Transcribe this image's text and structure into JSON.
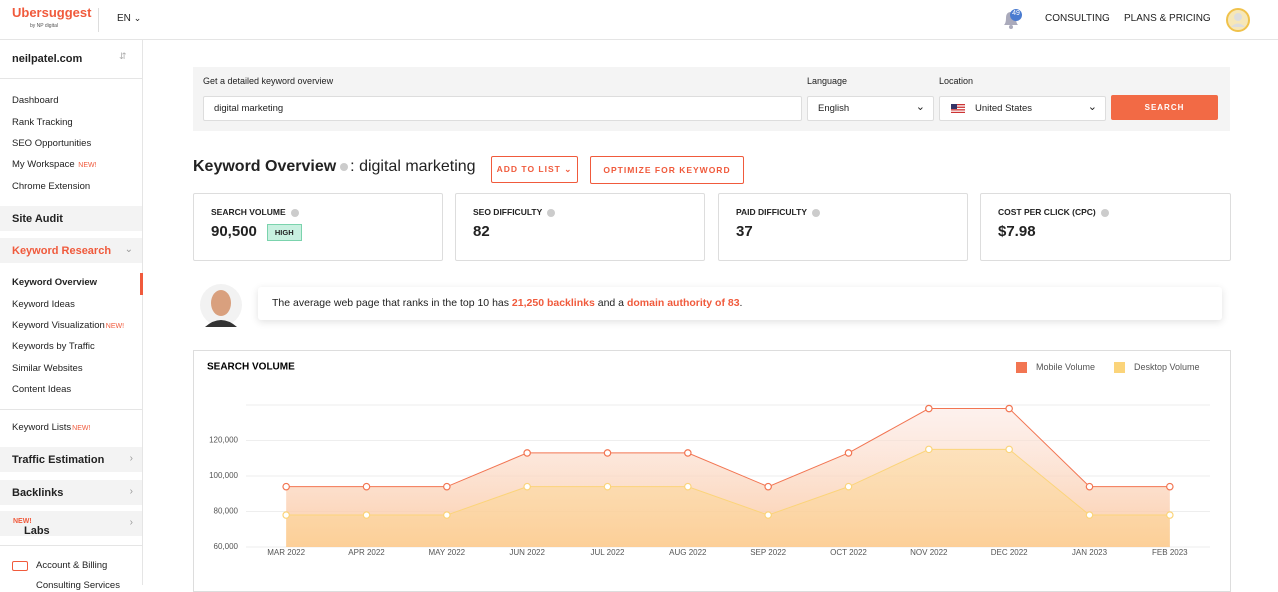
{
  "header": {
    "logo": "Ubersuggest",
    "logo_sub": "by NP digital",
    "language": "EN",
    "notifications": "49",
    "nav": [
      "CONSULTING",
      "PLANS & PRICING"
    ]
  },
  "sidebar": {
    "site": "neilpatel.com",
    "tools": [
      {
        "label": "Dashboard"
      },
      {
        "label": "Rank Tracking"
      },
      {
        "label": "SEO Opportunities"
      },
      {
        "label": "My Workspace",
        "badge": "NEW!"
      },
      {
        "label": "Chrome Extension"
      }
    ],
    "site_audit": "Site Audit",
    "keyword_research": "Keyword Research",
    "keyword_items": [
      {
        "label": "Keyword Overview"
      },
      {
        "label": "Keyword Ideas"
      },
      {
        "label": "Keyword Visualization",
        "badge": "NEW!"
      },
      {
        "label": "Keywords by Traffic"
      },
      {
        "label": "Similar Websites"
      },
      {
        "label": "Content Ideas"
      }
    ],
    "keyword_lists": {
      "label": "Keyword Lists",
      "badge": "NEW!"
    },
    "traffic_estimation": "Traffic Estimation",
    "backlinks": "Backlinks",
    "labs": {
      "label": "Labs",
      "badge": "NEW!"
    },
    "account": [
      "Account & Billing",
      "Consulting Services"
    ]
  },
  "search_form": {
    "label": "Get a detailed keyword overview",
    "keyword": "digital marketing",
    "language_label": "Language",
    "language": "English",
    "location_label": "Location",
    "location": "United States",
    "button": "SEARCH"
  },
  "overview": {
    "title": "Keyword Overview",
    "keyword": ": digital marketing",
    "add_button": "ADD TO LIST",
    "optimize_button": "OPTIMIZE FOR KEYWORD"
  },
  "metrics": [
    {
      "label": "SEARCH VOLUME",
      "value": "90,500",
      "badge": "HIGH"
    },
    {
      "label": "SEO DIFFICULTY",
      "value": "82"
    },
    {
      "label": "PAID DIFFICULTY",
      "value": "37"
    },
    {
      "label": "COST PER CLICK (CPC)",
      "value": "$7.98"
    }
  ],
  "insight": [
    "The average web page that ranks in the top 10 has ",
    "21,250 backlinks",
    " and a ",
    "domain authority of 83",
    "."
  ],
  "chart_data": {
    "type": "line",
    "title": "SEARCH VOLUME",
    "categories": [
      "MAR 2022",
      "APR 2022",
      "MAY 2022",
      "JUN 2022",
      "JUL 2022",
      "AUG 2022",
      "SEP 2022",
      "OCT 2022",
      "NOV 2022",
      "DEC 2022",
      "JAN 2023",
      "FEB 2023"
    ],
    "series": [
      {
        "name": "Mobile Volume",
        "color": "#f27552",
        "values": [
          94000,
          94000,
          94000,
          113000,
          113000,
          113000,
          94000,
          113000,
          138000,
          138000,
          94000,
          94000
        ]
      },
      {
        "name": "Desktop Volume",
        "color": "#fbd47a",
        "values": [
          78000,
          78000,
          78000,
          94000,
          94000,
          94000,
          78000,
          94000,
          115000,
          115000,
          78000,
          78000
        ]
      }
    ],
    "ylim": [
      60000,
      140000
    ],
    "yticks": [
      {
        "value": 60000,
        "label": "60,000"
      },
      {
        "value": 80000,
        "label": "80,000"
      },
      {
        "value": 100000,
        "label": "100,000"
      },
      {
        "value": 120000,
        "label": "120,000"
      }
    ],
    "grid": true,
    "legend": "top-right"
  }
}
